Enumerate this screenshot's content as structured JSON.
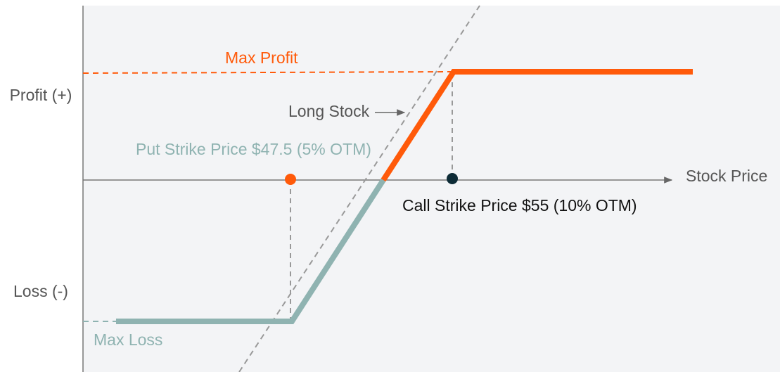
{
  "axes": {
    "y_positive": "Profit (+)",
    "y_negative": "Loss (-)",
    "x": "Stock Price"
  },
  "annotations": {
    "max_profit": "Max Profit",
    "long_stock": "Long Stock",
    "put_strike": "Put Strike Price $47.5 (5% OTM)",
    "call_strike": "Call Strike Price $55 (10% OTM)",
    "max_loss": "Max Loss"
  }
}
